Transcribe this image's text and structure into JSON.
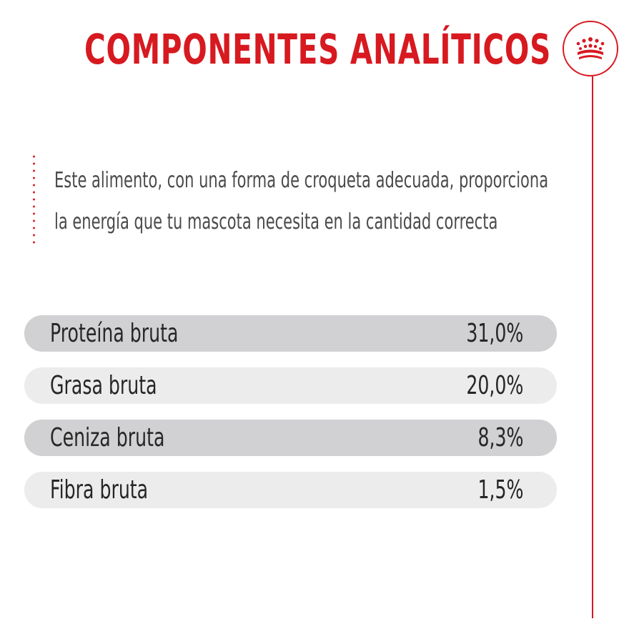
{
  "title": "COMPONENTES ANALÍTICOS",
  "logo": {
    "icon": "crown-icon",
    "color": "#d71920"
  },
  "description": [
    "Este alimento, con una forma de croqueta adecuada, proporciona",
    "la energía que tu mascota necesita en la cantidad correcta"
  ],
  "components": [
    {
      "label": "Proteína bruta",
      "value": "31,0%"
    },
    {
      "label": "Grasa bruta",
      "value": "20,0%"
    },
    {
      "label": "Ceniza bruta",
      "value": "8,3%"
    },
    {
      "label": "Fibra bruta",
      "value": "1,5%"
    }
  ],
  "colors": {
    "accent": "#d71920",
    "row_dark": "#d1d1d3",
    "row_light": "#ececec",
    "text": "#262626",
    "description_text": "#4a4a4a"
  }
}
